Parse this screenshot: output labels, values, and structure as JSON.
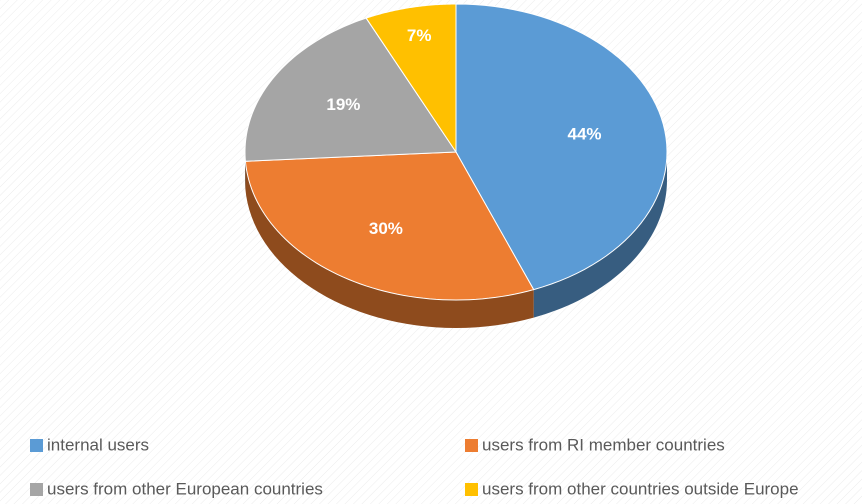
{
  "chart_data": {
    "type": "pie",
    "categories": [
      "internal users",
      "users from RI member countries",
      "users from other European countries",
      "users from other countries outside Europe"
    ],
    "values": [
      44,
      30,
      19,
      7
    ],
    "value_labels": [
      "44%",
      "30%",
      "19%",
      "7%"
    ],
    "colors": [
      "#5b9bd5",
      "#ed7d31",
      "#a5a5a5",
      "#ffc000"
    ],
    "legend": "bottom"
  }
}
